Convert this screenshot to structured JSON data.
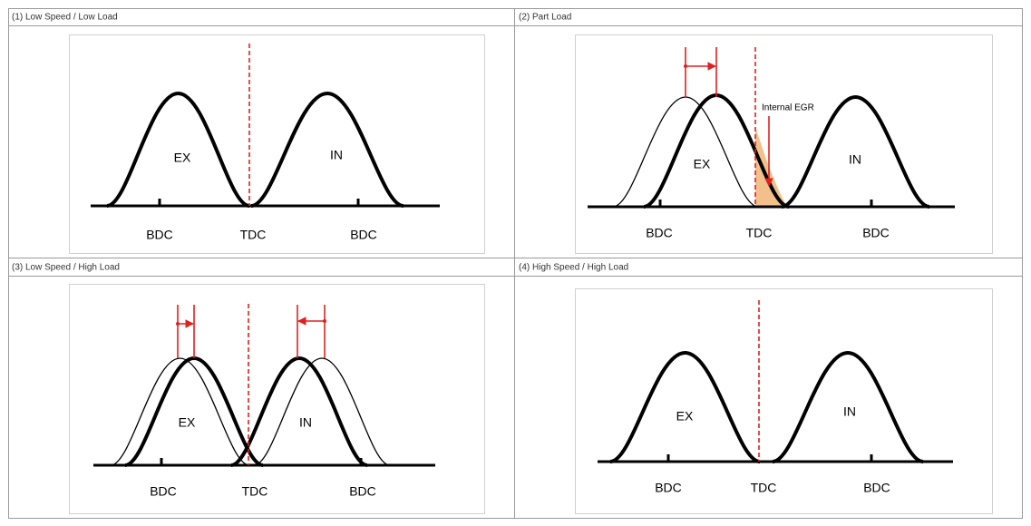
{
  "panels": [
    {
      "title": "(1) Low Speed / Low Load",
      "ex": "EX",
      "in": "IN",
      "bdc_left": "BDC",
      "tdc": "TDC",
      "bdc_right": "BDC"
    },
    {
      "title": "(2) Part Load",
      "ex": "EX",
      "in": "IN",
      "bdc_left": "BDC",
      "tdc": "TDC",
      "bdc_right": "BDC",
      "annotation": "Internal EGR"
    },
    {
      "title": "(3) Low Speed / High Load",
      "ex": "EX",
      "in": "IN",
      "bdc_left": "BDC",
      "tdc": "TDC",
      "bdc_right": "BDC"
    },
    {
      "title": "(4) High Speed / High Load",
      "ex": "EX",
      "in": "IN",
      "bdc_left": "BDC",
      "tdc": "TDC",
      "bdc_right": "BDC"
    }
  ]
}
